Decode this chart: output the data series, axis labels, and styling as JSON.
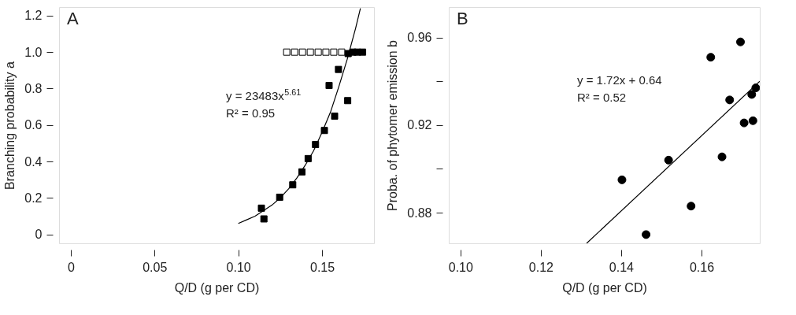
{
  "chart_data": [
    {
      "type": "scatter",
      "xlabel": "Q/D (g per CD)",
      "ylabel": "Branching probability a",
      "xlim": [
        -0.007,
        0.181
      ],
      "ylim": [
        -0.049,
        1.247
      ],
      "xticks": [
        0,
        0.05,
        {
          "value": 0.1,
          "label": "0.10"
        },
        0.15
      ],
      "yticks": [
        0,
        0.2,
        0.4,
        0.6,
        0.8,
        {
          "value": 1.0,
          "label": "1.0"
        },
        1.2
      ],
      "grid": false,
      "annotations": [
        "A",
        "y = 23483x$^{5.61}$",
        "R² = 0.95"
      ],
      "series": [
        {
          "marker": "square",
          "color": "#ffffff",
          "x": [
            0.1289,
            0.1336,
            0.1383,
            0.143,
            0.1477,
            0.1523,
            0.157,
            0.1617
          ],
          "values": [
            1.0,
            1.0,
            1.0,
            1.0,
            1.0,
            1.0,
            1.0,
            1.0
          ]
        },
        {
          "marker": "square",
          "color": "#000000",
          "x": [
            0.1138,
            0.1153,
            0.1247,
            0.1325,
            0.138,
            0.1417,
            0.1461,
            0.1514,
            0.1542,
            0.1575,
            0.1598,
            0.1653,
            0.1656,
            0.1684,
            0.171,
            0.1742
          ],
          "values": [
            0.144,
            0.085,
            0.204,
            0.272,
            0.343,
            0.416,
            0.493,
            0.57,
            0.817,
            0.649,
            0.905,
            0.734,
            0.992,
            1.0,
            1.0,
            1.0
          ]
        },
        {
          "type": "line",
          "marker": "none",
          "color": "#000000",
          "x": [
            0.1,
            0.105,
            0.11,
            0.115,
            0.12,
            0.125,
            0.13,
            0.135,
            0.14,
            0.145,
            0.15,
            0.155,
            0.16,
            0.165,
            0.17,
            0.1729
          ],
          "values": [
            0.06,
            0.08,
            0.1,
            0.13,
            0.16,
            0.2,
            0.25,
            0.31,
            0.38,
            0.46,
            0.56,
            0.67,
            0.81,
            0.96,
            1.13,
            1.24
          ]
        }
      ]
    },
    {
      "type": "scatter",
      "xlabel": "Q/D (g per CD)",
      "ylabel": "Proba. of phytomer emission b",
      "xlim": [
        0.0971,
        0.1745
      ],
      "ylim": [
        0.866,
        0.9739
      ],
      "xticks": [
        {
          "value": 0.1,
          "label": "0.10"
        },
        0.12,
        0.14,
        0.16
      ],
      "yticks": [
        0.88,
        {
          "value": 0.9,
          "label": null
        },
        0.92,
        {
          "value": 0.94,
          "label": null
        },
        0.96
      ],
      "grid": false,
      "annotations": [
        "B",
        "y = 1.72x + 0.64",
        "R² = 0.52"
      ],
      "series": [
        {
          "marker": "circle",
          "color": "#000000",
          "x": [
            0.1402,
            0.1462,
            0.1518,
            0.1574,
            0.1623,
            0.1651,
            0.167,
            0.1697,
            0.1706,
            0.1725,
            0.1728,
            0.1735
          ],
          "values": [
            0.895,
            0.87,
            0.904,
            0.883,
            0.951,
            0.9055,
            0.9315,
            0.958,
            0.921,
            0.934,
            0.922,
            0.937
          ]
        },
        {
          "type": "line",
          "marker": "none",
          "color": "#000000",
          "x": [
            0.1314,
            0.1745
          ],
          "values": [
            0.866,
            0.94
          ]
        }
      ]
    }
  ]
}
